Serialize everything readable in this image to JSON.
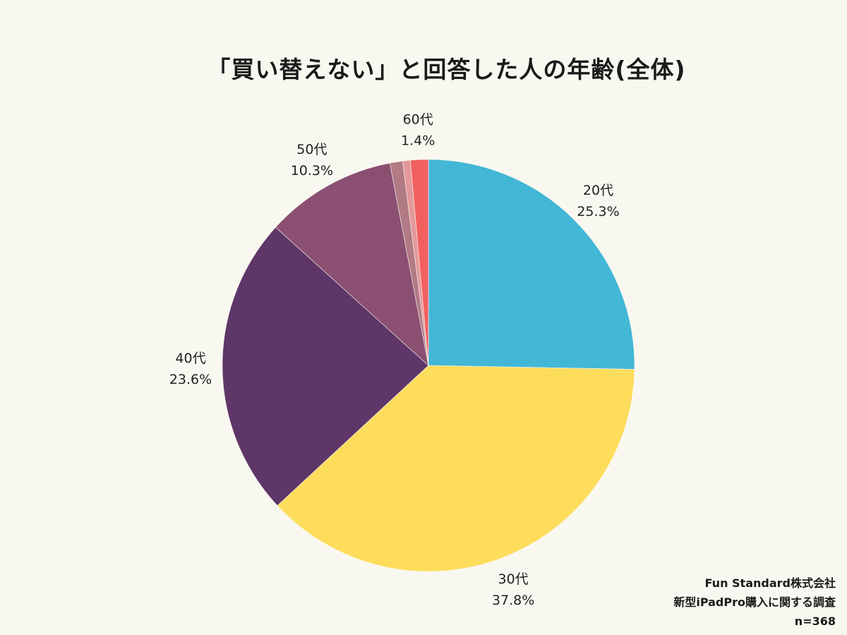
{
  "chart_data": {
    "type": "pie",
    "title": "「買い替えない」と回答した人の年齢(全体)",
    "slices": [
      {
        "label": "20代",
        "value": 25.3,
        "value_label": "25.3%",
        "color": "#43b7d6"
      },
      {
        "label": "30代",
        "value": 37.8,
        "value_label": "37.8%",
        "color": "#fedd5c"
      },
      {
        "label": "40代",
        "value": 23.6,
        "value_label": "23.6%",
        "color": "#5e3667"
      },
      {
        "label": "50代",
        "value": 10.3,
        "value_label": "10.3%",
        "color": "#8b4f72"
      },
      {
        "label": "",
        "value": 1.0,
        "value_label": "",
        "color": "#b17a85"
      },
      {
        "label": "",
        "value": 0.6,
        "value_label": "",
        "color": "#e3999a"
      },
      {
        "label": "60代",
        "value": 1.4,
        "value_label": "1.4%",
        "color": "#f26060"
      }
    ],
    "start": "12 o'clock",
    "direction": "clockwise",
    "legend": "none"
  },
  "footer": {
    "company": "Fun Standard株式会社",
    "survey": "新型iPadPro購入に関する調査",
    "sample_size": "n=368"
  }
}
